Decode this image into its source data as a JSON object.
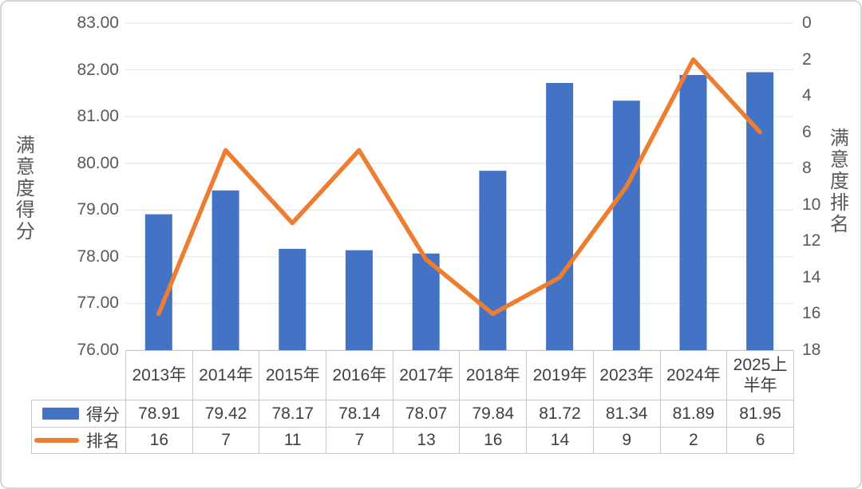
{
  "chart_data": {
    "type": "combo-bar-line",
    "title": "",
    "categories": [
      "2013年",
      "2014年",
      "2015年",
      "2016年",
      "2017年",
      "2018年",
      "2019年",
      "2023年",
      "2024年",
      "2025上\n半年"
    ],
    "series": [
      {
        "name": "得分",
        "type": "bar",
        "axis": "left",
        "color": "#4472C4",
        "values": [
          78.91,
          79.42,
          78.17,
          78.14,
          78.07,
          79.84,
          81.72,
          81.34,
          81.89,
          81.95
        ]
      },
      {
        "name": "排名",
        "type": "line",
        "axis": "right",
        "color": "#ED7D31",
        "values": [
          16,
          7,
          11,
          7,
          13,
          16,
          14,
          9,
          2,
          6
        ]
      }
    ],
    "left_axis": {
      "title": "满意度得分",
      "min": 76,
      "max": 83,
      "step": 1,
      "ticks": [
        "83.00",
        "82.00",
        "81.00",
        "80.00",
        "79.00",
        "78.00",
        "77.00",
        "76.00"
      ]
    },
    "right_axis": {
      "title": "满意度排名",
      "min": 0,
      "max": 18,
      "step": 2,
      "inverted": true,
      "ticks": [
        "0",
        "2",
        "4",
        "6",
        "8",
        "10",
        "12",
        "14",
        "16",
        "18"
      ]
    },
    "legend_position": "bottom-table",
    "grid": "horizontal"
  },
  "colors": {
    "bar": "#4472C4",
    "line": "#ED7D31",
    "gridline": "#E3E3E3",
    "axis_text": "#595959",
    "table_text": "#404040",
    "table_border": "#C8C8C8",
    "background": "#FFFFFF"
  }
}
